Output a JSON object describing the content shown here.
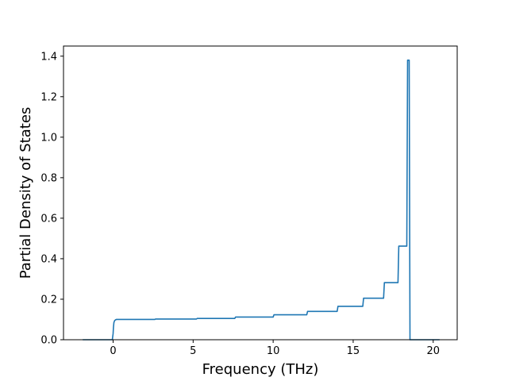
{
  "chart_data": {
    "type": "line",
    "title": "",
    "xlabel": "Frequency (THz)",
    "ylabel": "Partial Density of States",
    "xlim": [
      -3.1,
      21.5
    ],
    "ylim": [
      0.0,
      1.45
    ],
    "xticks": [
      0,
      5,
      10,
      15,
      20
    ],
    "yticks": [
      0.0,
      0.2,
      0.4,
      0.6,
      0.8,
      1.0,
      1.2,
      1.4
    ],
    "xtick_labels": [
      "0",
      "5",
      "10",
      "15",
      "20"
    ],
    "ytick_labels": [
      "0.0",
      "0.2",
      "0.4",
      "0.6",
      "0.8",
      "1.0",
      "1.2",
      "1.4"
    ],
    "grid": false,
    "legend": "none",
    "line_color": "#1f77b4",
    "series": [
      {
        "x": [
          -1.9,
          -0.05,
          0.0,
          0.02,
          0.05,
          0.1,
          0.15,
          0.2,
          0.3,
          2.6,
          2.65,
          5.2,
          5.25,
          7.6,
          7.65,
          10.0,
          10.05,
          12.1,
          12.15,
          14.0,
          14.05,
          15.6,
          15.65,
          16.9,
          16.95,
          17.8,
          17.85,
          18.35,
          18.4,
          18.5,
          18.55,
          20.4
        ],
        "y": [
          0.0,
          0.0,
          0.03,
          0.06,
          0.085,
          0.095,
          0.098,
          0.1,
          0.1,
          0.1,
          0.102,
          0.102,
          0.105,
          0.105,
          0.112,
          0.112,
          0.123,
          0.123,
          0.14,
          0.14,
          0.165,
          0.165,
          0.205,
          0.205,
          0.282,
          0.282,
          0.462,
          0.462,
          1.38,
          1.38,
          0.0,
          0.0
        ]
      }
    ]
  }
}
